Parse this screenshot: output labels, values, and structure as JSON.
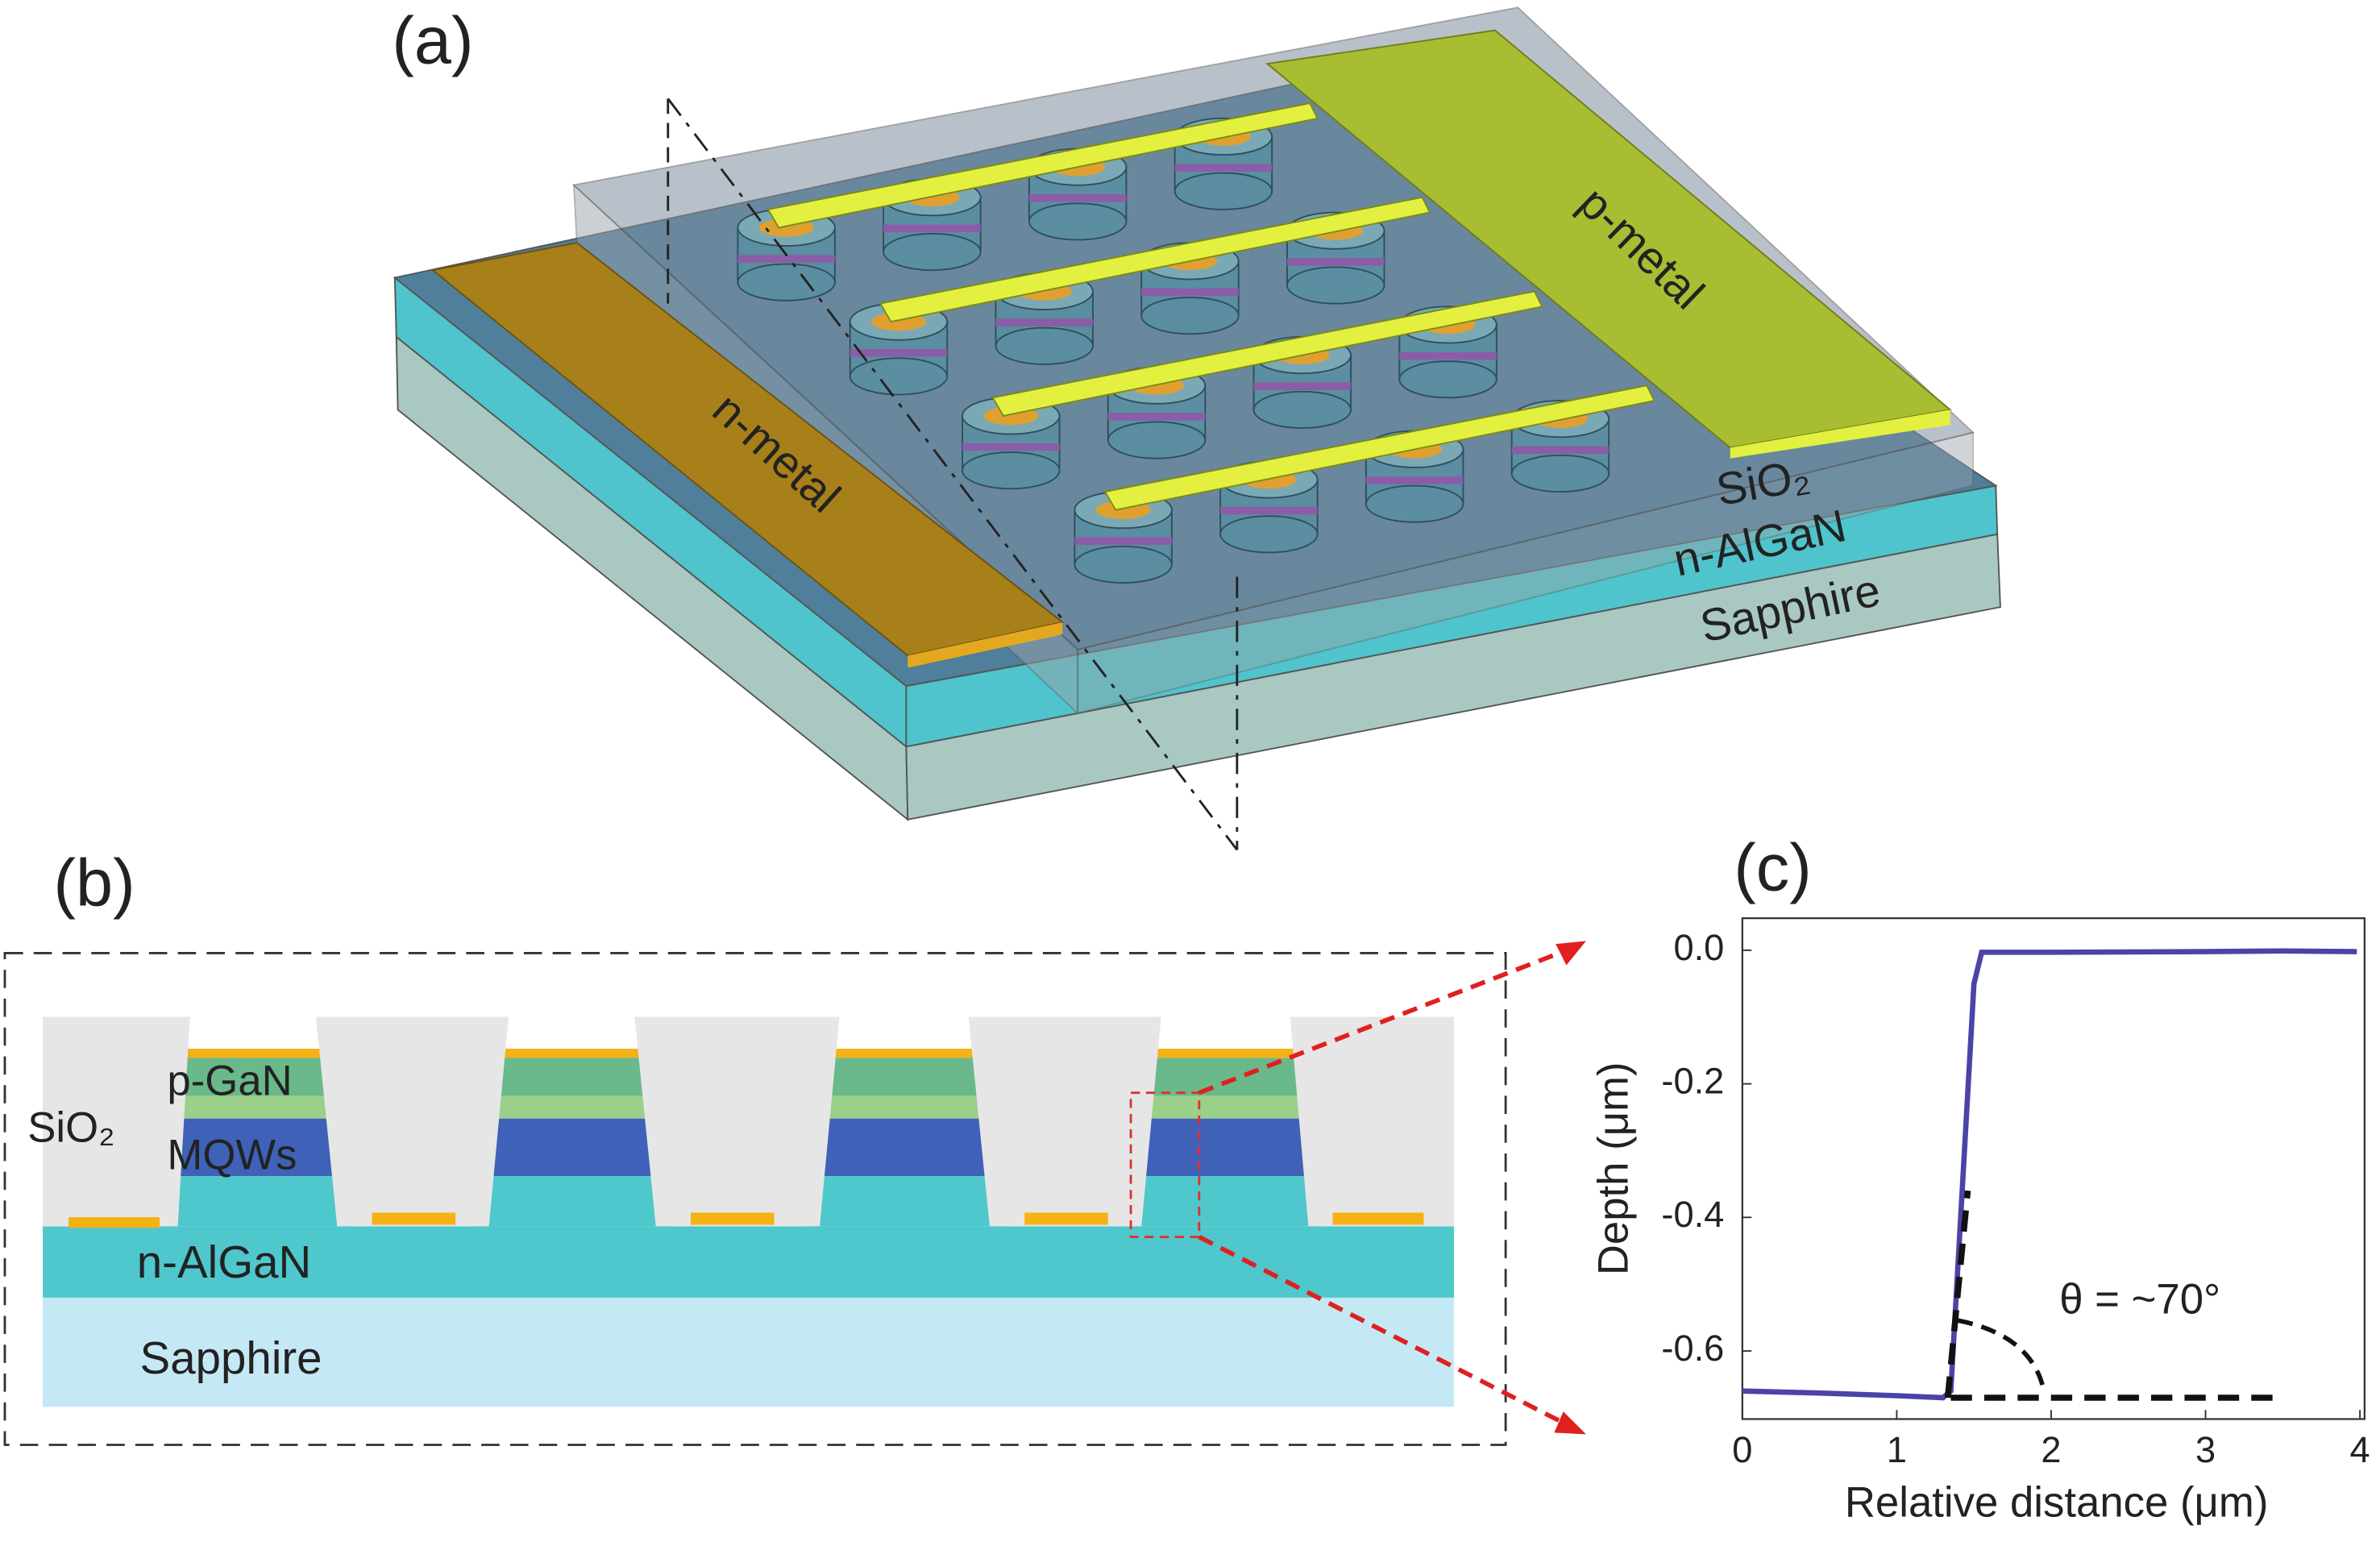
{
  "panel_a": {
    "label": "(a)",
    "p_metal": "p-metal",
    "n_metal": "n-metal",
    "sio2": "SiO₂",
    "n_algan": "n-AlGaN",
    "sapphire": "Sapphire"
  },
  "panel_b": {
    "label": "(b)",
    "sio2": "SiO₂",
    "p_gan": "p-GaN",
    "mqws": "MQWs",
    "n_algan": "n-AlGaN",
    "sapphire": "Sapphire"
  },
  "chart_data": {
    "type": "line",
    "label": "(c)",
    "x_label": "Relative distance (μm)",
    "y_label": "Depth (μm)",
    "annotation": "θ = ~70°",
    "xlim": [
      0,
      4.03
    ],
    "ylim": [
      -0.702,
      0.048
    ],
    "xticks": [
      0,
      1,
      2,
      3,
      4
    ],
    "yticks": [
      {
        "value": 0,
        "label": "0.0"
      },
      -0.2,
      -0.4,
      -0.6
    ],
    "series": [
      {
        "color": "#4b43a8",
        "dash": false,
        "x": [
          0,
          0.5,
          1.0,
          1.3,
          1.35,
          1.5,
          1.55,
          2,
          3,
          3.5,
          3.98
        ],
        "values": [
          -0.66,
          -0.663,
          -0.667,
          -0.67,
          -0.66,
          -0.05,
          -0.003,
          -0.003,
          -0.002,
          -0.001,
          -0.002
        ]
      },
      {
        "color": "#111111",
        "dash": true,
        "x": [
          1.33,
          1.46
        ],
        "values": [
          -0.67,
          -0.36
        ]
      },
      {
        "color": "#111111",
        "dash": true,
        "x": [
          1.35,
          3.45
        ],
        "values": [
          -0.67,
          -0.67
        ]
      }
    ]
  }
}
